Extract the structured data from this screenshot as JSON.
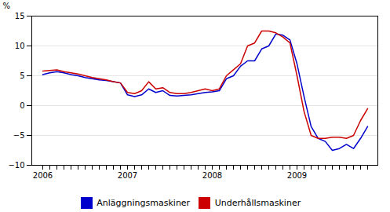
{
  "chart_data": {
    "type": "line",
    "ylabel": "%",
    "categories": [
      "2006",
      null,
      null,
      null,
      null,
      null,
      null,
      null,
      null,
      null,
      null,
      null,
      "2007",
      null,
      null,
      null,
      null,
      null,
      null,
      null,
      null,
      null,
      null,
      null,
      "2008",
      null,
      null,
      null,
      null,
      null,
      null,
      null,
      null,
      null,
      null,
      null,
      "2009",
      null,
      null,
      null,
      null,
      null,
      null,
      null,
      null,
      null,
      null
    ],
    "series": [
      {
        "name": "Anläggningsmaskiner",
        "color": "#0000cc",
        "values": [
          5.2,
          5.5,
          5.7,
          5.5,
          5.2,
          5.0,
          4.7,
          4.5,
          4.3,
          4.2,
          4.0,
          3.8,
          1.8,
          1.5,
          1.8,
          2.8,
          2.2,
          2.5,
          1.7,
          1.6,
          1.7,
          1.8,
          2.0,
          2.2,
          2.3,
          2.5,
          4.5,
          5.0,
          6.6,
          7.5,
          7.5,
          9.5,
          10.0,
          12.0,
          11.8,
          11.0,
          7.0,
          1.5,
          -3.5,
          -5.5,
          -6.0,
          -7.5,
          -7.2,
          -6.5,
          -7.2,
          -5.5,
          -3.5
        ]
      },
      {
        "name": "Underhållsmaskiner",
        "color": "#cc0000",
        "values": [
          5.8,
          5.9,
          6.0,
          5.7,
          5.5,
          5.3,
          5.0,
          4.7,
          4.5,
          4.3,
          4.0,
          3.8,
          2.2,
          2.0,
          2.5,
          4.0,
          2.8,
          3.0,
          2.2,
          2.0,
          2.0,
          2.2,
          2.5,
          2.8,
          2.5,
          2.8,
          5.0,
          6.0,
          7.0,
          10.0,
          10.5,
          12.5,
          12.5,
          12.2,
          11.5,
          10.5,
          5.0,
          -1.0,
          -5.0,
          -5.5,
          -5.5,
          -5.3,
          -5.3,
          -5.5,
          -5.0,
          -2.5,
          -0.5
        ]
      }
    ],
    "ylim": [
      -10,
      15
    ],
    "yticks": [
      -10,
      -5,
      0,
      5,
      10,
      15
    ],
    "grid": true,
    "legend": "bottom"
  }
}
